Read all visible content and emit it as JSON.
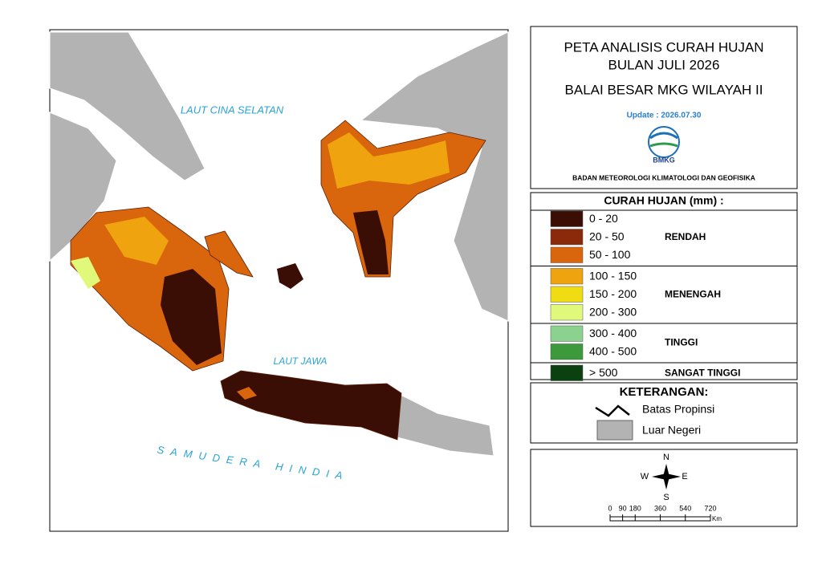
{
  "map": {
    "labels": [
      "LAUT CINA SELATAN",
      "LAUT JAWA",
      "SAMUDERA HINDIA"
    ]
  },
  "title": {
    "lines": [
      "PETA ANALISIS CURAH HUJAN",
      "BULAN JULI 2026"
    ],
    "subtitle": "BALAI BESAR MKG WILAYAH II",
    "update": "Update : 2026.07.30",
    "logo": "BMKG",
    "agency": "BADAN METEOROLOGI KLIMATOLOGI DAN GEOFISIKA"
  },
  "legend": {
    "title": "CURAH HUJAN (mm) :",
    "groups": [
      {
        "name": "RENDAH",
        "items": [
          {
            "label": "0 - 20",
            "color": "#3a0d05"
          },
          {
            "label": "20 - 50",
            "color": "#8b2a0b"
          },
          {
            "label": "50 - 100",
            "color": "#d9650c"
          }
        ]
      },
      {
        "name": "MENENGAH",
        "items": [
          {
            "label": "100 - 150",
            "color": "#efa40f"
          },
          {
            "label": "150 - 200",
            "color": "#f0dc12"
          },
          {
            "label": "200 - 300",
            "color": "#e1f97a"
          }
        ]
      },
      {
        "name": "TINGGI",
        "items": [
          {
            "label": "300 - 400",
            "color": "#8cd28f"
          },
          {
            "label": "400 - 500",
            "color": "#3c9a3c"
          }
        ]
      },
      {
        "name": "SANGAT TINGGI",
        "items": [
          {
            "label": "> 500",
            "color": "#0b4010"
          }
        ]
      }
    ]
  },
  "keterangan": {
    "title": "KETERANGAN:",
    "items": [
      "Batas Propinsi",
      "Luar Negeri"
    ]
  },
  "compass": {
    "n": "N",
    "e": "E",
    "s": "S",
    "w": "W"
  },
  "scale": {
    "ticks": [
      0,
      90,
      180,
      360,
      540,
      720
    ],
    "unit": "Km"
  }
}
